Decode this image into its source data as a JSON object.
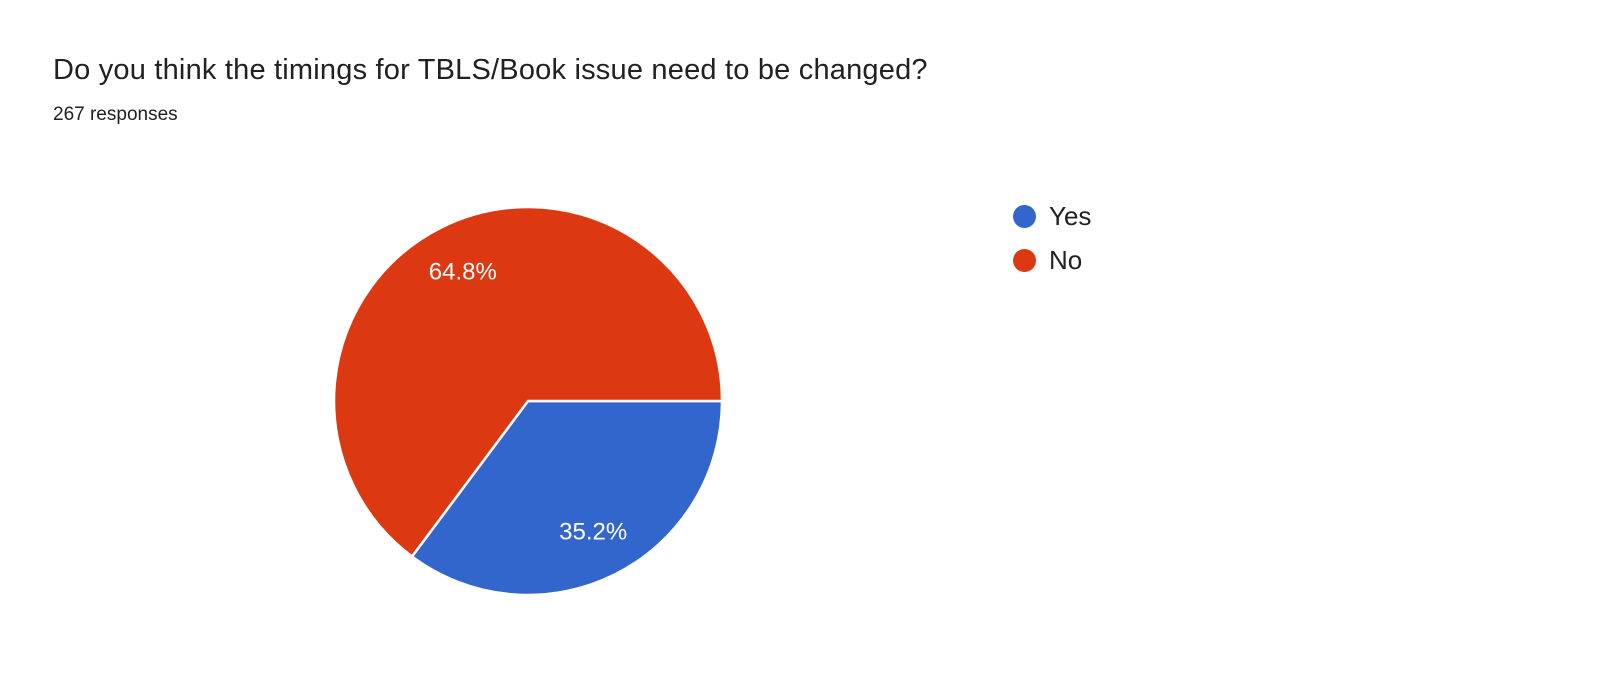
{
  "header": {
    "title": "Do you think the timings for TBLS/Book issue need to be changed?",
    "responses": "267 responses"
  },
  "chart_data": {
    "type": "pie",
    "title": "Do you think the timings for TBLS/Book issue need to be changed?",
    "responses_count": 267,
    "legend_position": "right",
    "start_angle_deg": 0,
    "direction": "clockwise",
    "slice_label_color": "#ffffff",
    "slice_separator_color": "#ffffff",
    "slices": [
      {
        "label": "Yes",
        "value_pct": 35.2,
        "display": "35.2%",
        "color": "#3366cc"
      },
      {
        "label": "No",
        "value_pct": 64.8,
        "display": "64.8%",
        "color": "#dc3912"
      }
    ]
  }
}
